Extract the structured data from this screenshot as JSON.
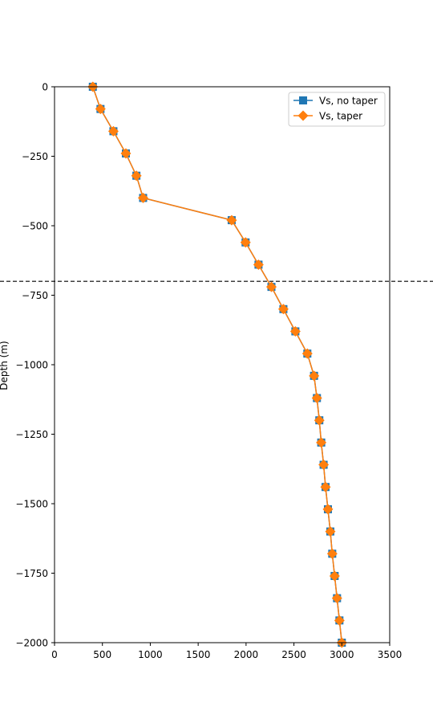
{
  "chart_data": {
    "type": "line",
    "title": "",
    "xlabel": "",
    "ylabel": "Depth (m)",
    "xlim": [
      0,
      3500
    ],
    "ylim": [
      -2000,
      0
    ],
    "x_ticks": [
      0,
      500,
      1000,
      1500,
      2000,
      2500,
      3000,
      3500
    ],
    "y_ticks": [
      0,
      -250,
      -500,
      -750,
      -1000,
      -1250,
      -1500,
      -1750,
      -2000
    ],
    "x_tick_labels": [
      "0",
      "500",
      "1000",
      "1500",
      "2000",
      "2500",
      "3000",
      "3500"
    ],
    "y_tick_labels": [
      "0",
      "−250",
      "−500",
      "−750",
      "−1000",
      "−1250",
      "−1500",
      "−1750",
      "−2000"
    ],
    "grid": false,
    "legend_position": "top-right",
    "reference_line": {
      "orientation": "horizontal",
      "y": -700,
      "style": "dashed",
      "color": "#000000"
    },
    "series": [
      {
        "name": "Vs, no taper",
        "marker": "square",
        "color": "#1f77b4",
        "x": [
          400,
          480,
          615,
          745,
          855,
          925,
          1850,
          1995,
          2130,
          2265,
          2390,
          2515,
          2640,
          2710,
          2740,
          2765,
          2785,
          2810,
          2830,
          2855,
          2880,
          2900,
          2925,
          2950,
          2975,
          3000
        ],
        "y": [
          0,
          -80,
          -160,
          -240,
          -320,
          -400,
          -480,
          -560,
          -640,
          -720,
          -800,
          -880,
          -960,
          -1040,
          -1120,
          -1200,
          -1280,
          -1360,
          -1440,
          -1520,
          -1600,
          -1680,
          -1760,
          -1840,
          -1920,
          -2000
        ]
      },
      {
        "name": "Vs, taper",
        "marker": "diamond",
        "color": "#ff7f0e",
        "x": [
          400,
          480,
          615,
          745,
          855,
          925,
          1850,
          1995,
          2130,
          2265,
          2390,
          2515,
          2640,
          2710,
          2740,
          2765,
          2785,
          2810,
          2830,
          2855,
          2880,
          2900,
          2925,
          2950,
          2975,
          3000
        ],
        "y": [
          0,
          -80,
          -160,
          -240,
          -320,
          -400,
          -480,
          -560,
          -640,
          -720,
          -800,
          -880,
          -960,
          -1040,
          -1120,
          -1200,
          -1280,
          -1360,
          -1440,
          -1520,
          -1600,
          -1680,
          -1760,
          -1840,
          -1920,
          -2000
        ]
      }
    ]
  }
}
